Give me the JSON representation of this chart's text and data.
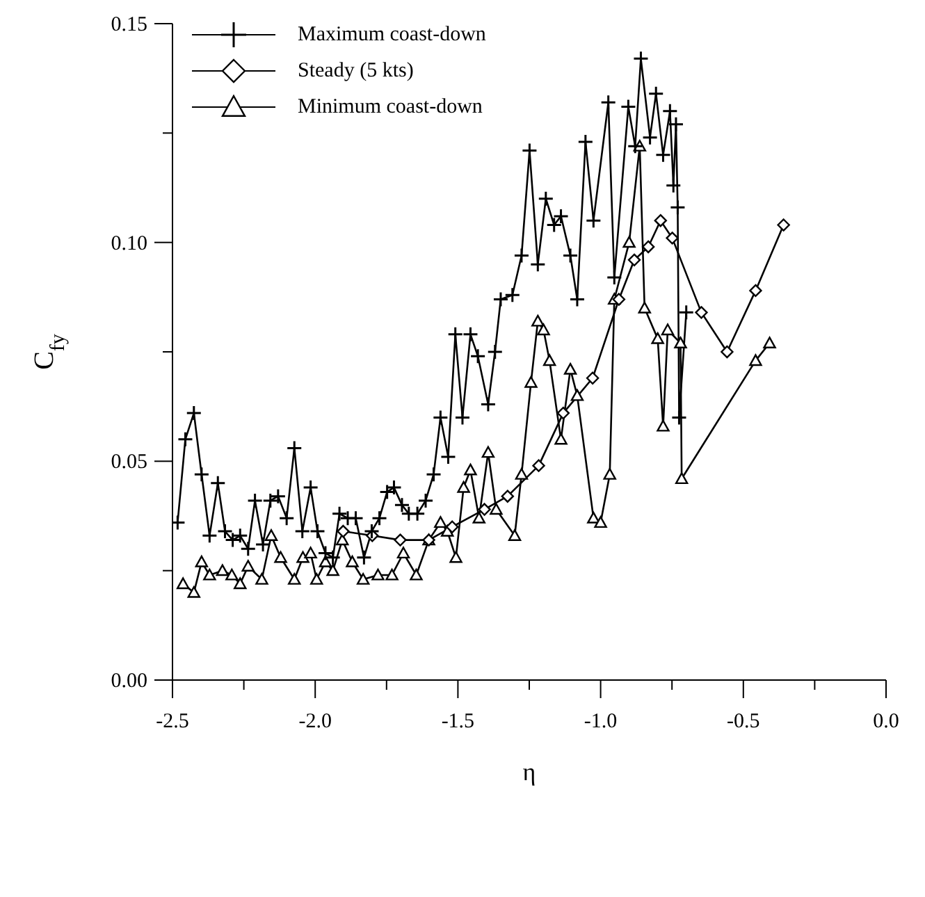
{
  "chart_data": {
    "type": "line",
    "xlabel": "η",
    "ylabel": "C$_{fy}$",
    "xlim": [
      -2.5,
      0.0
    ],
    "xticks": [
      {
        "value": -2.5,
        "label": "-2.5"
      },
      {
        "value": -2.25,
        "label": null
      },
      {
        "value": -2.0,
        "label": "-2.0"
      },
      {
        "value": -1.75,
        "label": null
      },
      {
        "value": -1.5,
        "label": "-1.5"
      },
      {
        "value": -1.25,
        "label": null
      },
      {
        "value": -1.0,
        "label": "-1.0"
      },
      {
        "value": -0.75,
        "label": null
      },
      {
        "value": -0.5,
        "label": "-0.5"
      },
      {
        "value": -0.25,
        "label": null
      },
      {
        "value": 0.0,
        "label": "0.0"
      }
    ],
    "ylim": [
      0,
      0.15
    ],
    "yticks": [
      {
        "value": 0,
        "label": "0.00"
      },
      {
        "value": 0.025,
        "label": null
      },
      {
        "value": 0.05,
        "label": "0.05"
      },
      {
        "value": 0.075,
        "label": null
      },
      {
        "value": 0.1,
        "label": "0.10"
      },
      {
        "value": 0.125,
        "label": null
      },
      {
        "value": 0.15,
        "label": "0.15"
      }
    ],
    "legend": "top left",
    "line_style": "solid",
    "series": [
      {
        "name": "Maximum coast-down",
        "color": "#000000",
        "marker": "cross",
        "x": [
          -2.482,
          -2.455,
          -2.425,
          -2.398,
          -2.37,
          -2.341,
          -2.316,
          -2.289,
          -2.263,
          -2.235,
          -2.211,
          -2.183,
          -2.157,
          -2.13,
          -2.1,
          -2.073,
          -2.045,
          -2.016,
          -1.992,
          -1.964,
          -1.938,
          -1.915,
          -1.886,
          -1.858,
          -1.829,
          -1.802,
          -1.775,
          -1.748,
          -1.724,
          -1.696,
          -1.672,
          -1.642,
          -1.613,
          -1.585,
          -1.561,
          -1.534,
          -1.509,
          -1.484,
          -1.456,
          -1.43,
          -1.394,
          -1.37,
          -1.35,
          -1.309,
          -1.277,
          -1.249,
          -1.22,
          -1.192,
          -1.163,
          -1.139,
          -1.106,
          -1.082,
          -1.053,
          -1.025,
          -0.973,
          -0.952,
          -0.903,
          -0.879,
          -0.859,
          -0.827,
          -0.806,
          -0.781,
          -0.757,
          -0.745,
          -0.736,
          -0.73,
          -0.725,
          -0.7
        ],
        "values": [
          0.036,
          0.055,
          0.061,
          0.047,
          0.033,
          0.045,
          0.034,
          0.032,
          0.033,
          0.03,
          0.041,
          0.031,
          0.041,
          0.042,
          0.037,
          0.053,
          0.034,
          0.044,
          0.034,
          0.029,
          0.028,
          0.038,
          0.037,
          0.037,
          0.028,
          0.034,
          0.037,
          0.043,
          0.044,
          0.04,
          0.038,
          0.038,
          0.041,
          0.047,
          0.06,
          0.051,
          0.079,
          0.06,
          0.079,
          0.074,
          0.063,
          0.075,
          0.087,
          0.088,
          0.097,
          0.121,
          0.095,
          0.11,
          0.104,
          0.106,
          0.097,
          0.087,
          0.123,
          0.105,
          0.132,
          0.092,
          0.131,
          0.122,
          0.142,
          0.124,
          0.134,
          0.12,
          0.13,
          0.113,
          0.127,
          0.108,
          0.06,
          0.084
        ]
      },
      {
        "name": "Steady (5 kts)",
        "color": "#000000",
        "marker": "diamond",
        "x": [
          -1.902,
          -1.8,
          -1.702,
          -1.602,
          -1.52,
          -1.407,
          -1.326,
          -1.217,
          -1.131,
          -1.028,
          -0.936,
          -0.882,
          -0.833,
          -0.79,
          -0.749,
          -0.647,
          -0.557,
          -0.457,
          -0.359
        ],
        "values": [
          0.034,
          0.033,
          0.032,
          0.032,
          0.035,
          0.039,
          0.042,
          0.049,
          0.061,
          0.069,
          0.087,
          0.096,
          0.099,
          0.105,
          0.101,
          0.084,
          0.075,
          0.089,
          0.104
        ]
      },
      {
        "name": "Minimum coast-down",
        "color": "#000000",
        "marker": "triangle",
        "x": [
          -2.463,
          -2.425,
          -2.398,
          -2.37,
          -2.325,
          -2.292,
          -2.263,
          -2.235,
          -2.187,
          -2.154,
          -2.121,
          -2.073,
          -2.043,
          -2.016,
          -1.995,
          -1.964,
          -1.938,
          -1.905,
          -1.87,
          -1.832,
          -1.78,
          -1.731,
          -1.691,
          -1.646,
          -1.602,
          -1.561,
          -1.537,
          -1.507,
          -1.48,
          -1.456,
          -1.426,
          -1.394,
          -1.366,
          -1.301,
          -1.277,
          -1.244,
          -1.22,
          -1.2,
          -1.179,
          -1.139,
          -1.106,
          -1.082,
          -1.025,
          -1.0,
          -0.968,
          -0.952,
          -0.9,
          -0.863,
          -0.846,
          -0.8,
          -0.781,
          -0.765,
          -0.72,
          -0.716,
          -0.457,
          -0.408
        ],
        "values": [
          0.022,
          0.02,
          0.027,
          0.024,
          0.025,
          0.024,
          0.022,
          0.026,
          0.023,
          0.033,
          0.028,
          0.023,
          0.028,
          0.029,
          0.023,
          0.027,
          0.025,
          0.032,
          0.027,
          0.023,
          0.024,
          0.024,
          0.029,
          0.024,
          0.032,
          0.036,
          0.034,
          0.028,
          0.044,
          0.048,
          0.037,
          0.052,
          0.039,
          0.033,
          0.047,
          0.068,
          0.082,
          0.08,
          0.073,
          0.055,
          0.071,
          0.065,
          0.037,
          0.036,
          0.047,
          0.087,
          0.1,
          0.122,
          0.085,
          0.078,
          0.058,
          0.08,
          0.077,
          0.046,
          0.073,
          0.077
        ]
      }
    ]
  }
}
